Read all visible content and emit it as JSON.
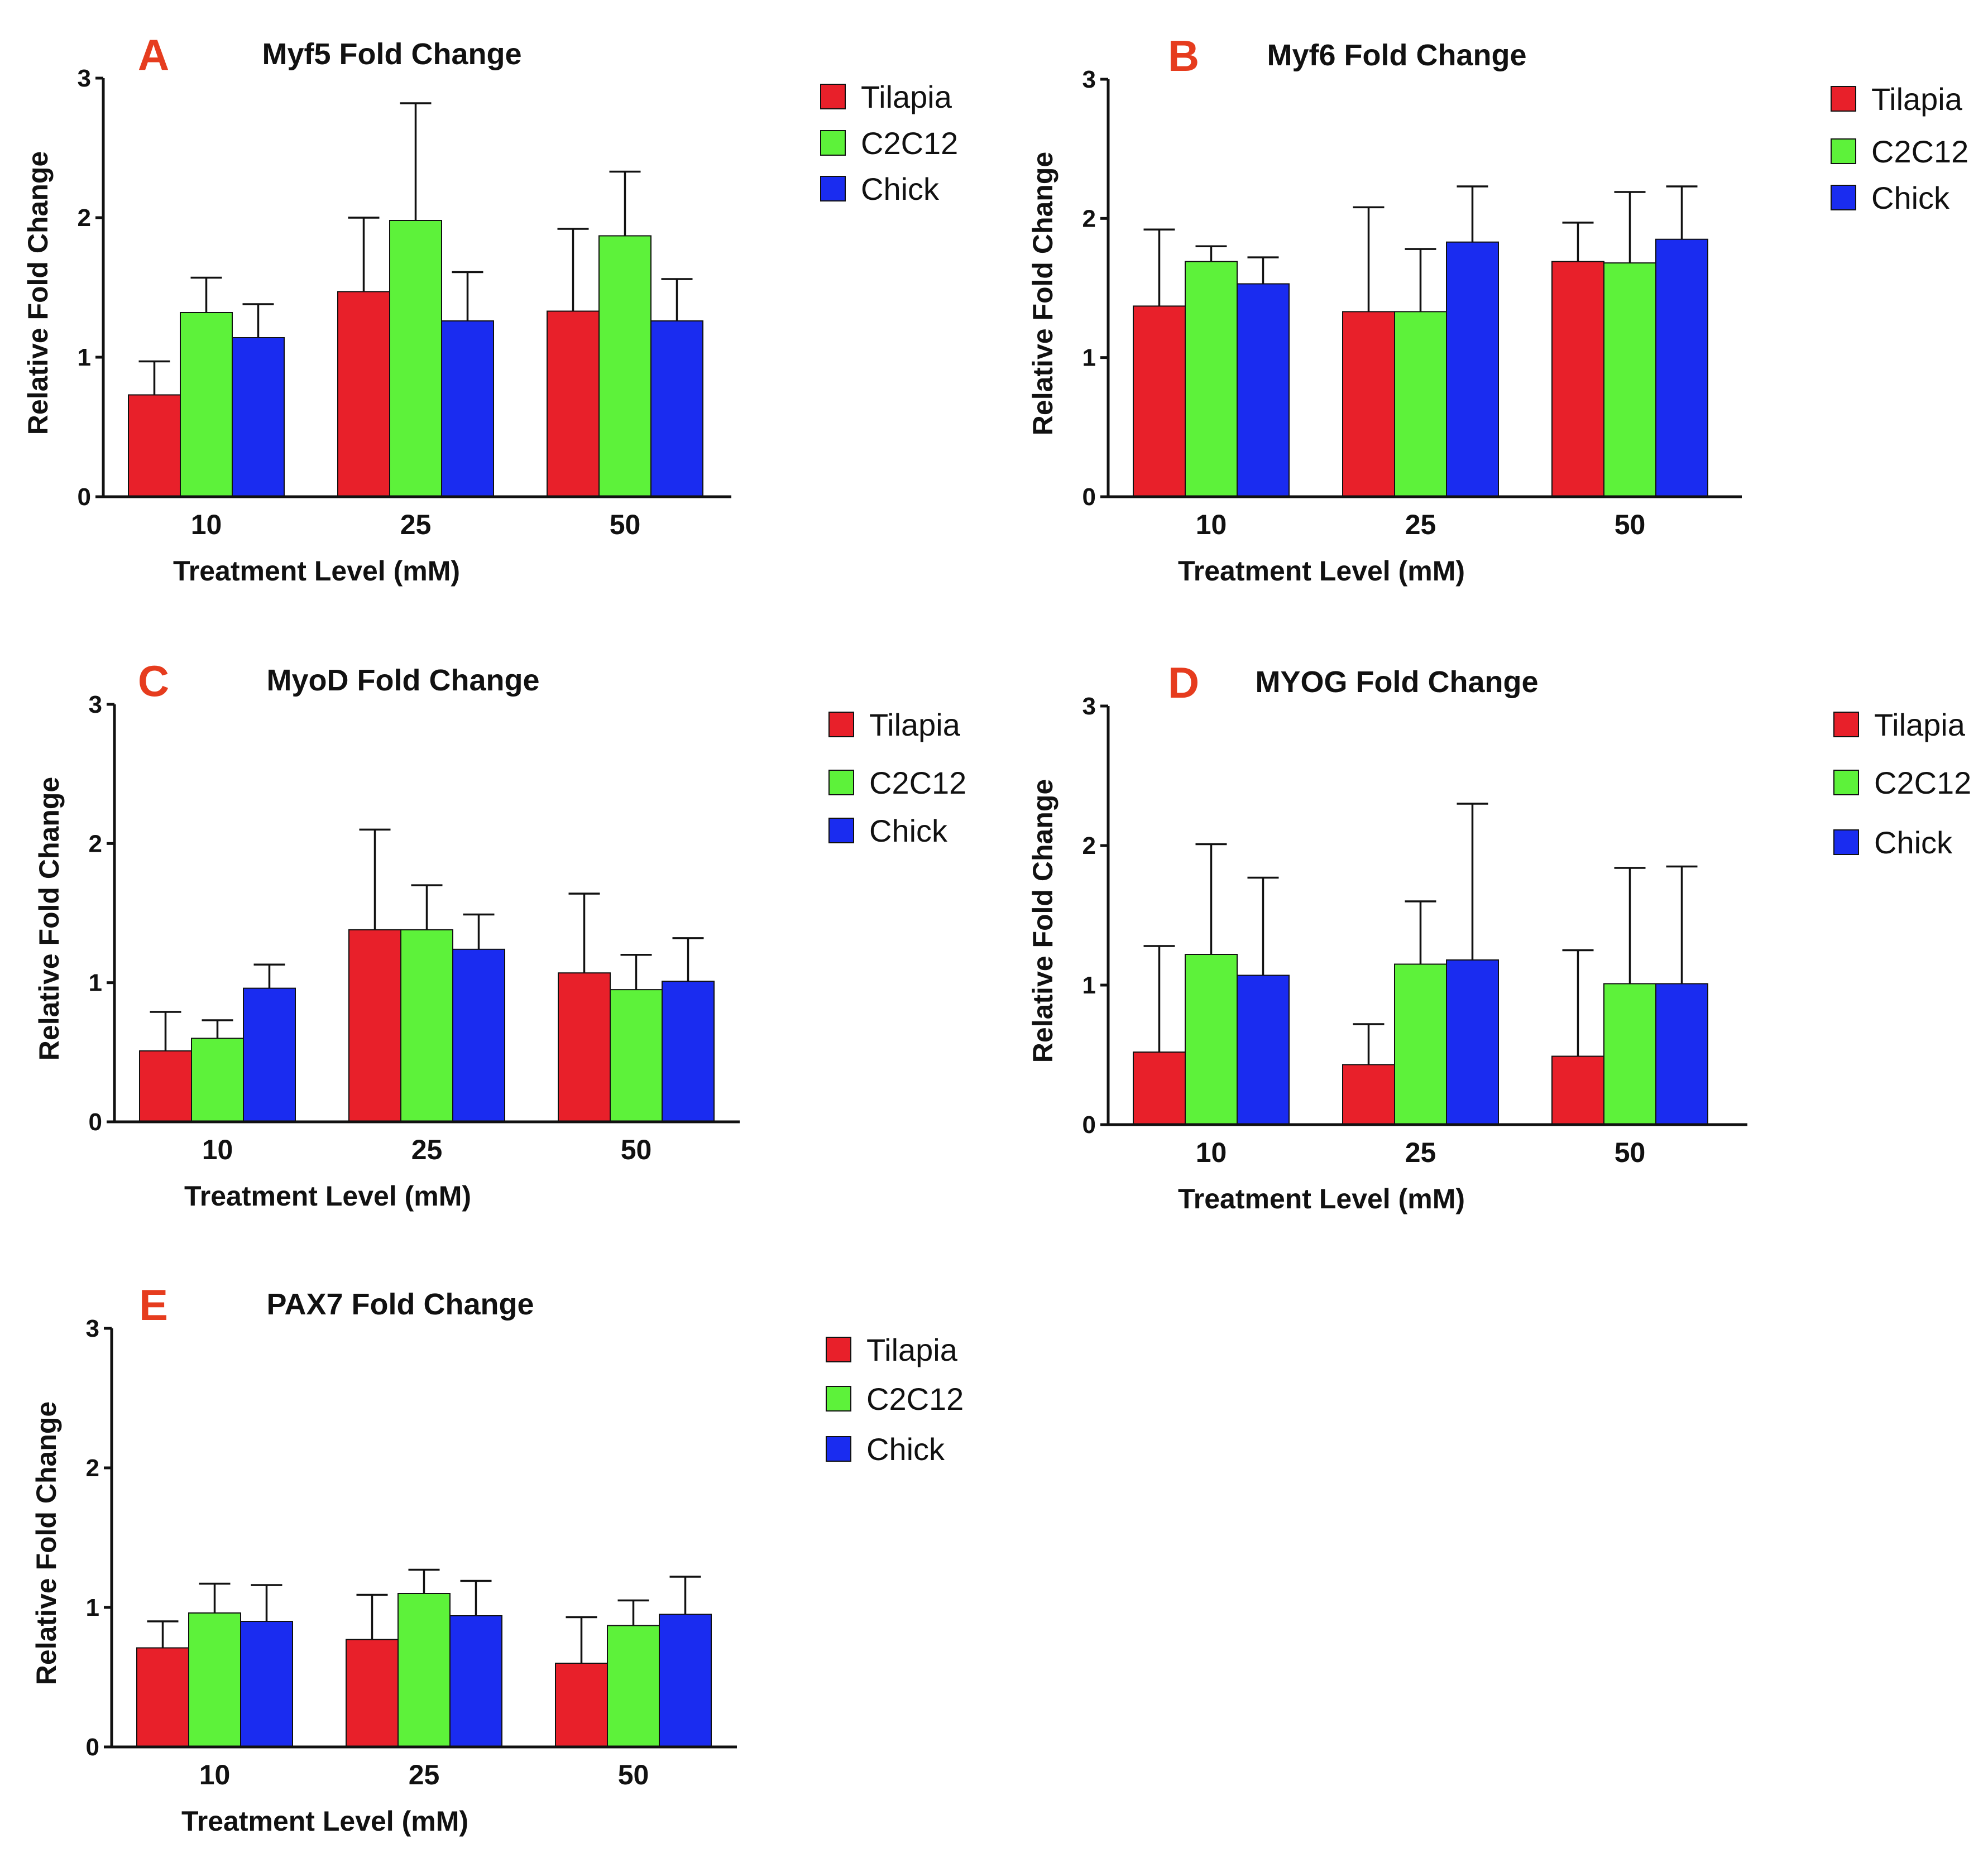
{
  "series_colors": {
    "Tilapia": "#e8202a",
    "C2C12": "#5df23a",
    "Chick": "#1a2cf0"
  },
  "letter_color": "#e63c1e",
  "chart_data": [
    {
      "type": "bar",
      "panel": "A",
      "title": "Myf5 Fold Change",
      "xlabel": "Treatment Level (mM)",
      "ylabel": "Relative Fold Change",
      "ylim": [
        0,
        3
      ],
      "yticks": [
        "0",
        "1",
        "2",
        "3"
      ],
      "categories": [
        "10",
        "25",
        "50"
      ],
      "legend": [
        "Tilapia",
        "C2C12",
        "Chick"
      ],
      "series": [
        {
          "name": "Tilapia",
          "values": [
            0.73,
            1.47,
            1.33
          ],
          "errors": [
            0.24,
            0.53,
            0.59
          ]
        },
        {
          "name": "C2C12",
          "values": [
            1.32,
            1.98,
            1.87
          ],
          "errors": [
            0.25,
            0.84,
            0.46
          ]
        },
        {
          "name": "Chick",
          "values": [
            1.14,
            1.26,
            1.26
          ],
          "errors": [
            0.24,
            0.35,
            0.3
          ]
        }
      ]
    },
    {
      "type": "bar",
      "panel": "B",
      "title": "Myf6 Fold Change",
      "xlabel": "Treatment Level (mM)",
      "ylabel": "Relative Fold Change",
      "ylim": [
        0,
        3
      ],
      "yticks": [
        "0",
        "1",
        "2",
        "3"
      ],
      "categories": [
        "10",
        "25",
        "50"
      ],
      "legend": [
        "Tilapia",
        "C2C12",
        "Chick"
      ],
      "series": [
        {
          "name": "Tilapia",
          "values": [
            1.37,
            1.33,
            1.69
          ],
          "errors": [
            0.55,
            0.75,
            0.28
          ]
        },
        {
          "name": "C2C12",
          "values": [
            1.69,
            1.33,
            1.68
          ],
          "errors": [
            0.11,
            0.45,
            0.51
          ]
        },
        {
          "name": "Chick",
          "values": [
            1.53,
            1.83,
            1.85
          ],
          "errors": [
            0.19,
            0.4,
            0.38
          ]
        }
      ]
    },
    {
      "type": "bar",
      "panel": "C",
      "title": "MyoD Fold Change",
      "xlabel": "Treatment Level (mM)",
      "ylabel": "Relative Fold Change",
      "ylim": [
        0,
        3
      ],
      "yticks": [
        "0",
        "1",
        "2",
        "3"
      ],
      "categories": [
        "10",
        "25",
        "50"
      ],
      "legend": [
        "Tilapia",
        "C2C12",
        "Chick"
      ],
      "series": [
        {
          "name": "Tilapia",
          "values": [
            0.51,
            1.38,
            1.07
          ],
          "errors": [
            0.28,
            0.72,
            0.57
          ]
        },
        {
          "name": "C2C12",
          "values": [
            0.6,
            1.38,
            0.95
          ],
          "errors": [
            0.13,
            0.32,
            0.25
          ]
        },
        {
          "name": "Chick",
          "values": [
            0.96,
            1.24,
            1.01
          ],
          "errors": [
            0.17,
            0.25,
            0.31
          ]
        }
      ]
    },
    {
      "type": "bar",
      "panel": "D",
      "title": "MYOG Fold Change",
      "xlabel": "Treatment Level (mM)",
      "ylabel": "Relative Fold Change",
      "ylim": [
        0,
        3
      ],
      "yticks": [
        "0",
        "1",
        "2",
        "3"
      ],
      "categories": [
        "10",
        "25",
        "50"
      ],
      "legend": [
        "Tilapia",
        "C2C12",
        "Chick"
      ],
      "series": [
        {
          "name": "Tilapia",
          "values": [
            0.52,
            0.43,
            0.49
          ],
          "errors": [
            0.76,
            0.29,
            0.76
          ]
        },
        {
          "name": "C2C12",
          "values": [
            1.22,
            1.15,
            1.01
          ],
          "errors": [
            0.79,
            0.45,
            0.83
          ]
        },
        {
          "name": "Chick",
          "values": [
            1.07,
            1.18,
            1.01
          ],
          "errors": [
            0.7,
            1.12,
            0.84
          ]
        }
      ]
    },
    {
      "type": "bar",
      "panel": "E",
      "title": "PAX7 Fold Change",
      "xlabel": "Treatment Level (mM)",
      "ylabel": "Relative Fold Change",
      "ylim": [
        0,
        3
      ],
      "yticks": [
        "0",
        "1",
        "2",
        "3"
      ],
      "categories": [
        "10",
        "25",
        "50"
      ],
      "legend": [
        "Tilapia",
        "C2C12",
        "Chick"
      ],
      "series": [
        {
          "name": "Tilapia",
          "values": [
            0.71,
            0.77,
            0.6
          ],
          "errors": [
            0.19,
            0.32,
            0.33
          ]
        },
        {
          "name": "C2C12",
          "values": [
            0.96,
            1.1,
            0.87
          ],
          "errors": [
            0.21,
            0.17,
            0.18
          ]
        },
        {
          "name": "Chick",
          "values": [
            0.9,
            0.94,
            0.95
          ],
          "errors": [
            0.26,
            0.25,
            0.27
          ]
        }
      ]
    }
  ]
}
